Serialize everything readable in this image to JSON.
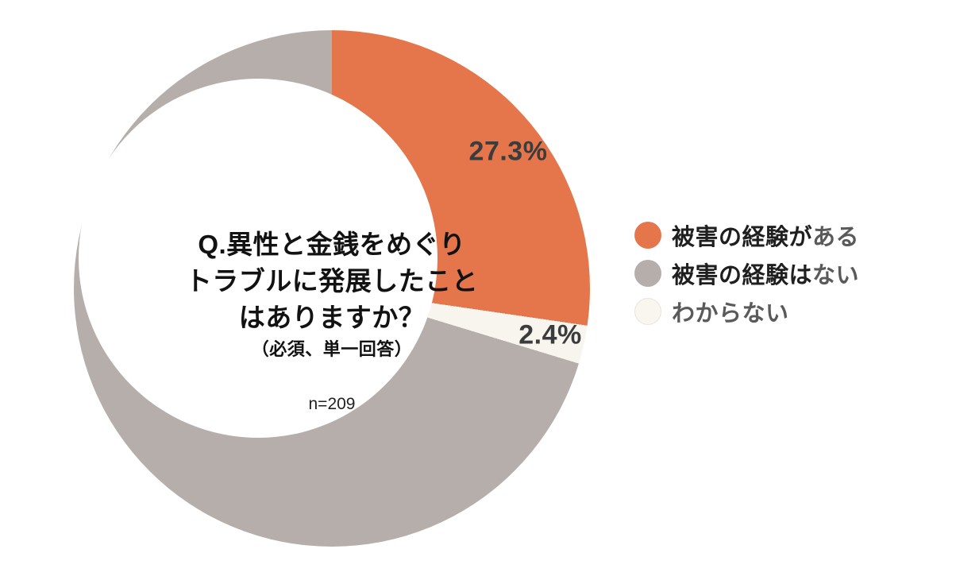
{
  "chart_data": {
    "type": "pie",
    "donut": true,
    "title": "Q.異性と金銭をめぐりトラブルに発展したことはありますか？",
    "subtitle": "（必須、単一回答）",
    "sample_size": "n=209",
    "start_angle_deg": 0,
    "direction": "clockwise",
    "legend_position": "right",
    "inner_radius_ratio": 0.7,
    "slices": [
      {
        "label": "被害の経験がある",
        "value": 27.3,
        "display": "27.3%",
        "color": "#E5764C",
        "label_color": "#3C3C3C"
      },
      {
        "label": "わからない",
        "value": 2.4,
        "display": "2.4%",
        "color": "#F8F5EF",
        "label_color": "#3C3C3C"
      },
      {
        "label": "被害の経験はない",
        "value": 70.3,
        "display": "70.3%",
        "color": "#B5AEAB",
        "label_color": "#FFFFFF"
      }
    ]
  },
  "center_text": {
    "line1": "Q.異性と金銭をめぐり",
    "line2": "トラブルに発展したこと",
    "line3": "はありますか？",
    "note": "（必須、単一回答）",
    "sample": "n=209"
  },
  "legend": {
    "items": [
      {
        "prefix": "被害の経験が",
        "suffix": "ある",
        "color": "#E5764C",
        "border_color": ""
      },
      {
        "prefix": "被害の経験は",
        "suffix": "ない",
        "color": "#B5AEAB",
        "border_color": ""
      },
      {
        "prefix": "",
        "suffix": "わからない",
        "color": "#F9F6F0",
        "border_color": "#E9E4DC"
      }
    ]
  }
}
